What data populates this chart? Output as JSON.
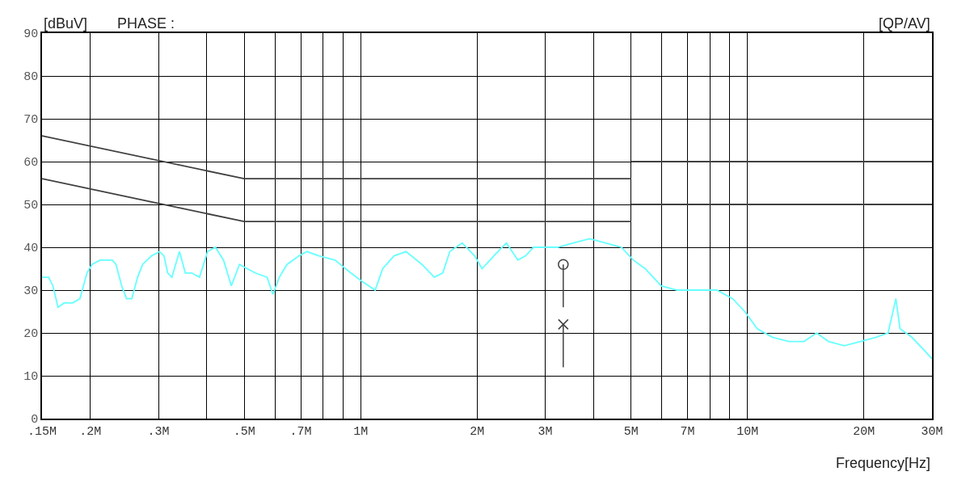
{
  "chart_data": {
    "type": "line",
    "ylabel": "[dBuV]",
    "xlabel": "Frequency[Hz]",
    "annotations": [
      "PHASE :",
      "[QP/AV]"
    ],
    "log": "x",
    "grid": true,
    "xlim": [
      0.15,
      30
    ],
    "ylim": [
      0,
      90
    ],
    "xticks": [
      {
        "value": 0.15,
        "label": ".15M"
      },
      {
        "value": 0.2,
        "label": ".2M"
      },
      {
        "value": 0.3,
        "label": ".3M"
      },
      {
        "value": 0.4,
        "label": null
      },
      {
        "value": 0.5,
        "label": ".5M"
      },
      {
        "value": 0.6,
        "label": null
      },
      {
        "value": 0.7,
        "label": ".7M"
      },
      {
        "value": 0.8,
        "label": null
      },
      {
        "value": 0.9,
        "label": null
      },
      {
        "value": 1,
        "label": "1M"
      },
      {
        "value": 2,
        "label": "2M"
      },
      {
        "value": 3,
        "label": "3M"
      },
      {
        "value": 4,
        "label": null
      },
      {
        "value": 5,
        "label": "5M"
      },
      {
        "value": 6,
        "label": null
      },
      {
        "value": 7,
        "label": "7M"
      },
      {
        "value": 8,
        "label": null
      },
      {
        "value": 9,
        "label": null
      },
      {
        "value": 10,
        "label": "10M"
      },
      {
        "value": 20,
        "label": "20M"
      },
      {
        "value": 30,
        "label": "30M"
      }
    ],
    "yticks": [
      0,
      10,
      20,
      30,
      40,
      50,
      60,
      70,
      80,
      90
    ],
    "series": [
      {
        "type": "line",
        "color": "#404040",
        "marker": "none",
        "x": [
          0.15,
          0.5,
          5
        ],
        "values": [
          66,
          56,
          56
        ]
      },
      {
        "type": "line",
        "color": "#404040",
        "marker": "none",
        "x": [
          5,
          30
        ],
        "values": [
          60,
          60
        ]
      },
      {
        "type": "line",
        "color": "#404040",
        "marker": "none",
        "x": [
          0.15,
          0.5,
          5
        ],
        "values": [
          56,
          46,
          46
        ]
      },
      {
        "type": "line",
        "color": "#404040",
        "marker": "none",
        "x": [
          5,
          30
        ],
        "values": [
          50,
          50
        ]
      },
      {
        "color": "#66ffff",
        "marker": "none",
        "x": [
          0.15,
          0.156,
          0.16,
          0.165,
          0.171,
          0.18,
          0.188,
          0.196,
          0.202,
          0.212,
          0.228,
          0.233,
          0.241,
          0.248,
          0.256,
          0.265,
          0.273,
          0.288,
          0.302,
          0.31,
          0.317,
          0.325,
          0.34,
          0.352,
          0.366,
          0.383,
          0.402,
          0.421,
          0.442,
          0.463,
          0.486,
          0.509,
          0.534,
          0.573,
          0.593,
          0.616,
          0.645,
          0.693,
          0.726,
          0.78,
          0.858,
          0.943,
          1.01,
          1.09,
          1.14,
          1.22,
          1.31,
          1.44,
          1.55,
          1.63,
          1.7,
          1.83,
          1.97,
          2.06,
          2.21,
          2.38,
          2.55,
          2.67,
          2.8,
          3.01,
          3.23,
          3.55,
          3.91,
          4.29,
          4.72,
          5.07,
          5.44,
          5.98,
          6.58,
          7.23,
          8.33,
          9.16,
          9.84,
          10.6,
          11.6,
          12.8,
          14.0,
          15.1,
          16.2,
          17.8,
          19.6,
          21.5,
          23.1,
          24.2,
          24.8,
          26.6,
          28.6,
          30
        ],
        "values": [
          33,
          33,
          31,
          26,
          27,
          27,
          28,
          34,
          36,
          37,
          37,
          36,
          31,
          28,
          28,
          33,
          36,
          38,
          39,
          38,
          34,
          33,
          39,
          34,
          34,
          33,
          39,
          40,
          37,
          31,
          36,
          35,
          34,
          33,
          29,
          33,
          36,
          38,
          39,
          38,
          37,
          34,
          32,
          30,
          35,
          38,
          39,
          36,
          33,
          34,
          39,
          41,
          38,
          35,
          38,
          41,
          37,
          38,
          40,
          40,
          40,
          41,
          42,
          41,
          40,
          37,
          35,
          31,
          30,
          30,
          30,
          28,
          25,
          21,
          19,
          18,
          18,
          20,
          18,
          17,
          18,
          19,
          20,
          28,
          21,
          19,
          16,
          14
        ]
      },
      {
        "type": "scatter",
        "color": "#404040",
        "marker": "circle",
        "x": [
          3.34
        ],
        "values": [
          36
        ],
        "errors": [
          [
            26,
            36
          ]
        ]
      },
      {
        "type": "scatter",
        "color": "#404040",
        "marker": "cross",
        "x": [
          3.34
        ],
        "values": [
          22
        ],
        "errors": [
          [
            12,
            22
          ]
        ]
      }
    ]
  }
}
